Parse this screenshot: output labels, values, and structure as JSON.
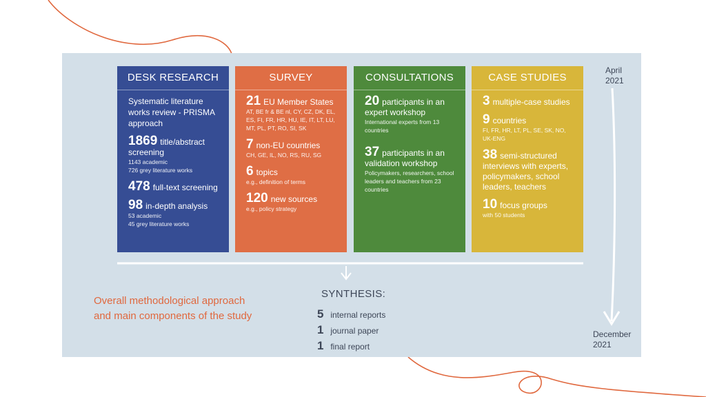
{
  "columns": [
    {
      "title": "DESK RESEARCH",
      "intro": "Systematic literature works review - PRISMA approach",
      "blocks": [
        {
          "num": "1869",
          "text": "title/abstract screening",
          "detail": [
            "1143 academic",
            "726 grey literature works"
          ]
        },
        {
          "num": "478",
          "text": "full-text screening",
          "detail": []
        },
        {
          "num": "98",
          "text": "in-depth analysis",
          "detail": [
            "53 academic",
            "45 grey literature works"
          ]
        }
      ]
    },
    {
      "title": "SURVEY",
      "blocks": [
        {
          "num": "21",
          "text": "EU Member States",
          "detail": [
            "AT, BE fr & BE nl, CY, CZ, DK, EL, ES, FI, FR, HR, HU, IE, IT, LT, LU, MT, PL, PT, RO, SI, SK"
          ]
        },
        {
          "num": "7",
          "text": "non-EU countries",
          "detail": [
            "CH, GE, IL, NO, RS, RU, SG"
          ]
        },
        {
          "num": "6",
          "text": "topics",
          "detail": [
            "e.g., definition of terms"
          ]
        },
        {
          "num": "120",
          "text": "new sources",
          "detail": [
            "e.g., policy strategy"
          ]
        }
      ]
    },
    {
      "title": "CONSULTATIONS",
      "blocks": [
        {
          "num": "20",
          "text": "participants in an expert workshop",
          "detail": [
            "International experts from 13 countries"
          ]
        },
        {
          "num": "37",
          "text": "participants in an validation workshop",
          "detail": [
            "Policymakers, researchers, school leaders and teachers from 23 countries"
          ]
        }
      ]
    },
    {
      "title": "CASE STUDIES",
      "blocks": [
        {
          "num": "3",
          "text": "multiple-case studies",
          "detail": []
        },
        {
          "num": "9",
          "text": "countries",
          "detail": [
            "FI, FR, HR, LT, PL, SE, SK, NO, UK-ENG"
          ]
        },
        {
          "num": "38",
          "text": "semi-structured interviews with experts, policymakers, school leaders, teachers",
          "detail": []
        },
        {
          "num": "10",
          "text": "focus groups",
          "detail": [
            "with 50 students"
          ]
        }
      ]
    }
  ],
  "caption_line1": "Overall methodological approach",
  "caption_line2": "and main components of the study",
  "synthesis": {
    "title": "SYNTHESIS:",
    "items": [
      {
        "num": "5",
        "label": "internal reports"
      },
      {
        "num": "1",
        "label": "journal paper"
      },
      {
        "num": "1",
        "label": "final report"
      }
    ]
  },
  "timeline": {
    "start_month": "April",
    "start_year": "2021",
    "end_month": "December",
    "end_year": "2021"
  },
  "colors": {
    "desk": "#364d94",
    "survey": "#df6e45",
    "consultations": "#4e8a3c",
    "case_studies": "#d8b63a",
    "panel": "#d3dfe8",
    "accent": "#e0683e"
  }
}
